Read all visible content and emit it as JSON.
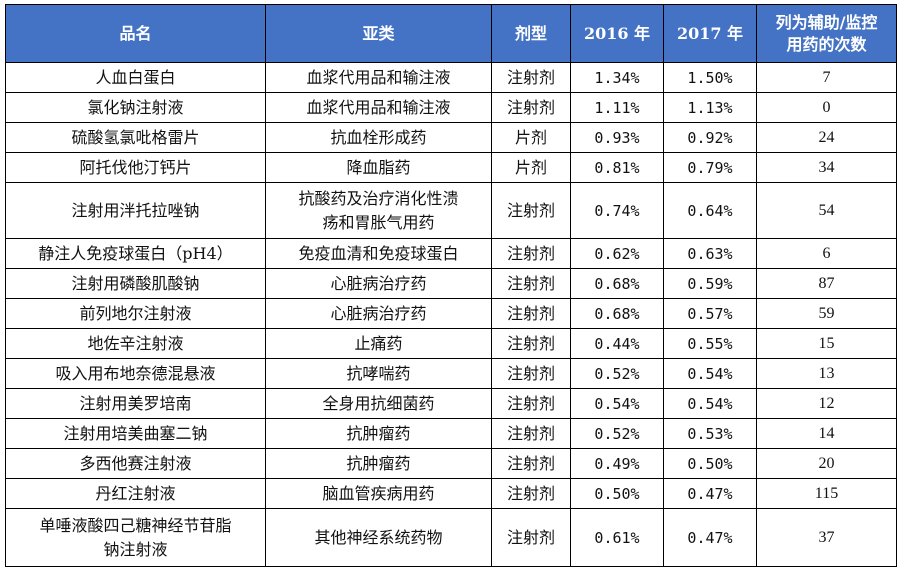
{
  "header": {
    "name": "品名",
    "subcategory": "亚类",
    "form": "剂型",
    "year2016": "2016 年",
    "year2017": "2017 年",
    "count_line1": "列为辅助/监控",
    "count_line2": "用药的次数"
  },
  "colors": {
    "header_bg": "#4472c4",
    "header_text": "#ffffff",
    "border": "#000000"
  },
  "rows": [
    {
      "name": "人血白蛋白",
      "sub": "血浆代用品和输注液",
      "form": "注射剂",
      "y2016": "1.34%",
      "y2017": "1.50%",
      "count": "7"
    },
    {
      "name": "氯化钠注射液",
      "sub": "血浆代用品和输注液",
      "form": "注射剂",
      "y2016": "1.11%",
      "y2017": "1.13%",
      "count": "0"
    },
    {
      "name": "硫酸氢氯吡格雷片",
      "sub": "抗血栓形成药",
      "form": "片剂",
      "y2016": "0.93%",
      "y2017": "0.92%",
      "count": "24"
    },
    {
      "name": "阿托伐他汀钙片",
      "sub": "降血脂药",
      "form": "片剂",
      "y2016": "0.81%",
      "y2017": "0.79%",
      "count": "34"
    },
    {
      "name": "注射用泮托拉唑钠",
      "sub_line1": "抗酸药及治疗消化性溃",
      "sub_line2": "疡和胃胀气用药",
      "form": "注射剂",
      "y2016": "0.74%",
      "y2017": "0.64%",
      "count": "54"
    },
    {
      "name": "静注人免疫球蛋白（pH4）",
      "sub": "免疫血清和免疫球蛋白",
      "form": "注射剂",
      "y2016": "0.62%",
      "y2017": "0.63%",
      "count": "6"
    },
    {
      "name": "注射用磷酸肌酸钠",
      "sub": "心脏病治疗药",
      "form": "注射剂",
      "y2016": "0.68%",
      "y2017": "0.59%",
      "count": "87"
    },
    {
      "name": "前列地尔注射液",
      "sub": "心脏病治疗药",
      "form": "注射剂",
      "y2016": "0.68%",
      "y2017": "0.57%",
      "count": "59"
    },
    {
      "name": "地佐辛注射液",
      "sub": "止痛药",
      "form": "注射剂",
      "y2016": "0.44%",
      "y2017": "0.55%",
      "count": "15"
    },
    {
      "name": "吸入用布地奈德混悬液",
      "sub": "抗哮喘药",
      "form": "注射剂",
      "y2016": "0.52%",
      "y2017": "0.54%",
      "count": "13"
    },
    {
      "name": "注射用美罗培南",
      "sub": "全身用抗细菌药",
      "form": "注射剂",
      "y2016": "0.54%",
      "y2017": "0.54%",
      "count": "12"
    },
    {
      "name": "注射用培美曲塞二钠",
      "sub": "抗肿瘤药",
      "form": "注射剂",
      "y2016": "0.52%",
      "y2017": "0.53%",
      "count": "14"
    },
    {
      "name": "多西他赛注射液",
      "sub": "抗肿瘤药",
      "form": "注射剂",
      "y2016": "0.49%",
      "y2017": "0.50%",
      "count": "20"
    },
    {
      "name": "丹红注射液",
      "sub": "脑血管疾病用药",
      "form": "注射剂",
      "y2016": "0.50%",
      "y2017": "0.47%",
      "count": "115"
    },
    {
      "name_line1": "单唾液酸四己糖神经节苷脂",
      "name_line2": "钠注射液",
      "sub": "其他神经系统药物",
      "form": "注射剂",
      "y2016": "0.61%",
      "y2017": "0.47%",
      "count": "37"
    }
  ]
}
